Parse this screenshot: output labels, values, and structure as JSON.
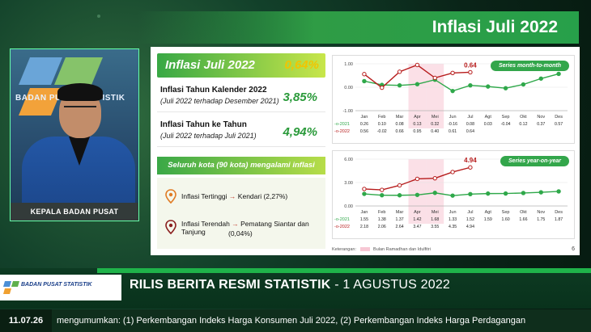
{
  "slide": {
    "title": "Inflasi Juli 2022",
    "page_number": "6",
    "headline": {
      "label": "Inflasi Juli 2022",
      "value": "0,64%"
    },
    "rows": [
      {
        "label": "Inflasi Tahun Kalender 2022",
        "sub": "(Juli 2022 terhadap Desember 2021)",
        "value": "3,85%"
      },
      {
        "label": "Inflasi Tahun ke Tahun",
        "sub": "(Juli 2022 terhadap Juli 2021)",
        "value": "4,94%"
      }
    ],
    "cities_banner": "Seluruh kota (90 kota) mengalami inflasi",
    "highest": {
      "label": "Inflasi Tertinggi",
      "value": "Kendari (2,27%)"
    },
    "lowest": {
      "label": "Inflasi Terendah",
      "value": "Pematang Siantar dan Tanjung",
      "value2": "(0,04%)"
    },
    "footnote_label": "Keterangan:",
    "footnote_text": "Bulan Ramadhan dan Idulfitri"
  },
  "presenter": {
    "nameplate": "KEPALA BADAN PUSAT STATISTIK",
    "bg_text": "BADAN PUSAT STATISTIK"
  },
  "chart_data": [
    {
      "type": "line",
      "title": "Series month-to-month",
      "categories": [
        "Jan",
        "Feb",
        "Mar",
        "Apr",
        "Mei",
        "Jun",
        "Jul",
        "Agt",
        "Sep",
        "Okt",
        "Nov",
        "Des"
      ],
      "ylim": [
        -1.0,
        1.0
      ],
      "yticks": [
        "1.00",
        "0.00",
        "-1.00"
      ],
      "annotation": "0.64",
      "series": [
        {
          "name": "2021",
          "values": [
            0.26,
            0.1,
            0.08,
            0.13,
            0.32,
            -0.16,
            0.08,
            0.03,
            -0.04,
            0.12,
            0.37,
            0.57
          ]
        },
        {
          "name": "2022",
          "values": [
            0.56,
            -0.02,
            0.66,
            0.95,
            0.4,
            0.61,
            0.64,
            null,
            null,
            null,
            null,
            null
          ]
        }
      ],
      "table": {
        "2021": [
          "0.26",
          "0.10",
          "0.08",
          "0.13",
          "0.32",
          "-0.16",
          "0.08",
          "0.03",
          "-0.04",
          "0.12",
          "0.37",
          "0.57"
        ],
        "2022": [
          "0.56",
          "-0.02",
          "0.66",
          "0.95",
          "0.40",
          "0.61",
          "0.64"
        ]
      }
    },
    {
      "type": "line",
      "title": "Series year-on-year",
      "categories": [
        "Jan",
        "Feb",
        "Mar",
        "Apr",
        "Mei",
        "Jun",
        "Jul",
        "Agt",
        "Sep",
        "Okt",
        "Nov",
        "Des"
      ],
      "ylim": [
        0.0,
        6.0
      ],
      "yticks": [
        "6.00",
        "3.00",
        "0.00"
      ],
      "annotation": "4.94",
      "series": [
        {
          "name": "2021",
          "values": [
            1.55,
            1.38,
            1.37,
            1.42,
            1.68,
            1.33,
            1.52,
            1.59,
            1.6,
            1.66,
            1.75,
            1.87
          ]
        },
        {
          "name": "2022",
          "values": [
            2.18,
            2.06,
            2.64,
            3.47,
            3.55,
            4.35,
            4.94,
            null,
            null,
            null,
            null,
            null
          ]
        }
      ],
      "table": {
        "2021": [
          "1.55",
          "1.38",
          "1.37",
          "1.42",
          "1.68",
          "1.33",
          "1.52",
          "1.59",
          "1.60",
          "1.66",
          "1.75",
          "1.87"
        ],
        "2022": [
          "2.18",
          "2.06",
          "2.64",
          "3.47",
          "3.55",
          "4.35",
          "4.94"
        ]
      }
    }
  ],
  "colors": {
    "green": "#2fa84a",
    "red": "#b71c1c",
    "ramadan": "#f7c7d4"
  },
  "lower_third": {
    "title_bold": "RILIS BERITA RESMI STATISTIK",
    "title_rest": " - 1 AGUSTUS 2022",
    "logo_text": "BADAN PUSAT STATISTIK"
  },
  "ticker": {
    "time": "11.07.26",
    "text": "mengumumkan: (1) Perkembangan Indeks Harga Konsumen Juli 2022, (2) Perkembangan Indeks Harga Perdagangan"
  }
}
